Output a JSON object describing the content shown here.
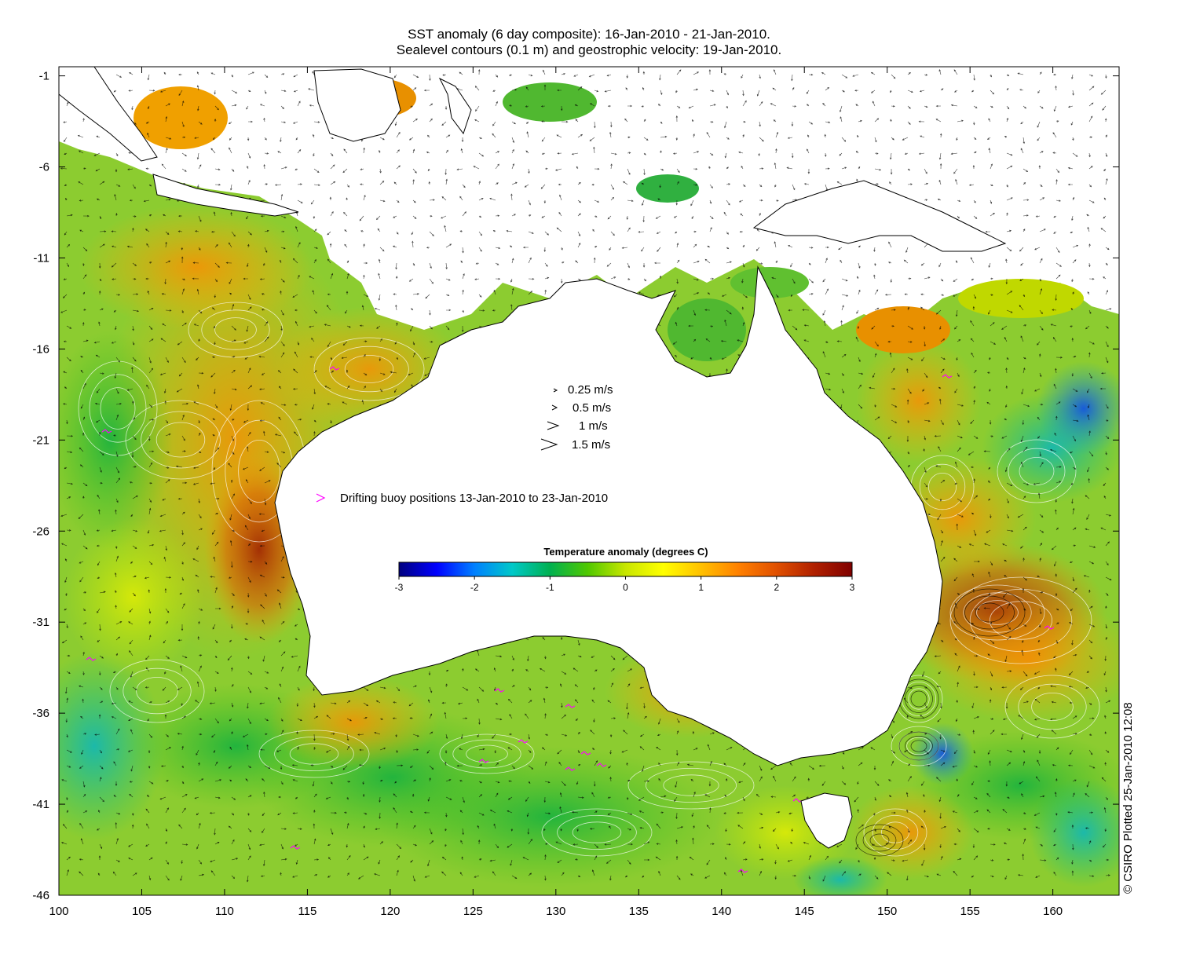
{
  "title": {
    "line1": "SST anomaly (6 day composite): 16-Jan-2010 - 21-Jan-2010.",
    "line2": "Sealevel contours (0.1 m) and geostrophic velocity: 19-Jan-2010."
  },
  "axes": {
    "lon_range": [
      100,
      164
    ],
    "lat_range": [
      -46,
      -0.5
    ],
    "x_ticks": [
      "100",
      "105",
      "110",
      "115",
      "120",
      "125",
      "130",
      "135",
      "140",
      "145",
      "150",
      "155",
      "160"
    ],
    "y_ticks": [
      "-1",
      "-6",
      "-11",
      "-16",
      "-21",
      "-26",
      "-31",
      "-36",
      "-41",
      "-46"
    ],
    "x_tick_values": [
      100,
      105,
      110,
      115,
      120,
      125,
      130,
      135,
      140,
      145,
      150,
      155,
      160
    ],
    "y_tick_values": [
      -1,
      -6,
      -11,
      -16,
      -21,
      -26,
      -31,
      -36,
      -41,
      -46
    ]
  },
  "velocity_legend": [
    {
      "label": "0.25 m/s",
      "speed": 0.25
    },
    {
      "label": "0.5 m/s",
      "speed": 0.5
    },
    {
      "label": "1 m/s",
      "speed": 1.0
    },
    {
      "label": "1.5 m/s",
      "speed": 1.5
    }
  ],
  "buoy_legend": {
    "label": "Drifting buoy positions 13-Jan-2010 to 23-Jan-2010",
    "color": "#ff00ff"
  },
  "colorbar": {
    "title": "Temperature anomaly (degrees C)",
    "ticks": [
      "-3",
      "-2",
      "-1",
      "0",
      "1",
      "2",
      "3"
    ],
    "tick_values": [
      -3,
      -2,
      -1,
      0,
      1,
      2,
      3
    ],
    "colors": [
      "#00007f",
      "#0000ff",
      "#0080ff",
      "#00c8c8",
      "#00b050",
      "#50c800",
      "#c8e600",
      "#ffff00",
      "#ffc000",
      "#ff8000",
      "#e05000",
      "#b02000",
      "#800000"
    ]
  },
  "credit": "© CSIRO Plotted 25-Jan-2010 12:08",
  "colors": {
    "land": "#ffffff",
    "coast": "#000000",
    "contour": "#ffffff",
    "buoy": "#ff00ff"
  }
}
